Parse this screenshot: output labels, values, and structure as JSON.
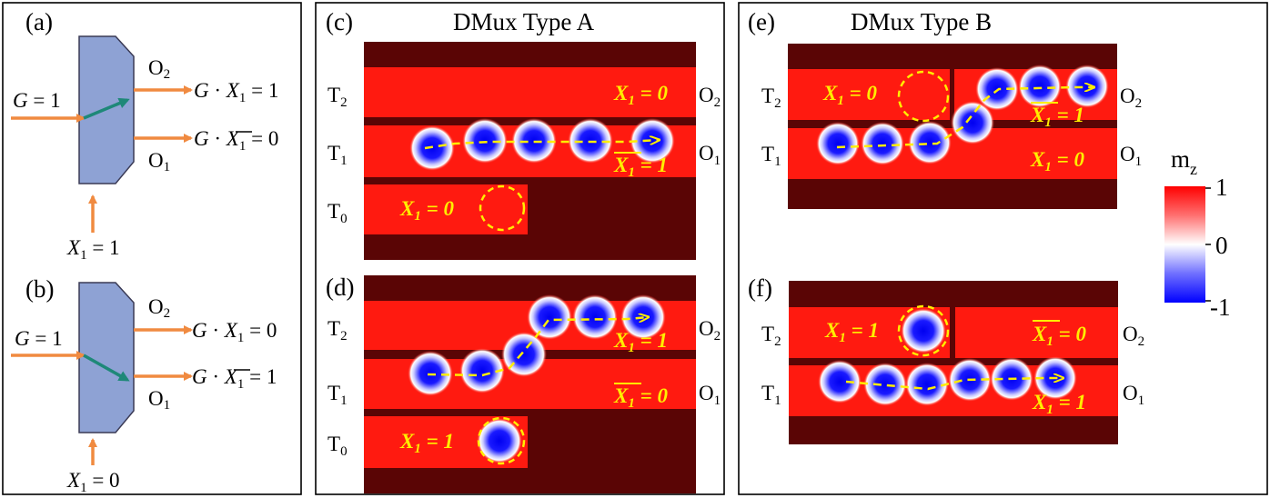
{
  "colors": {
    "dark": "#5a0505",
    "track": "#ff1a10",
    "skyrmion_core": "#0000ff",
    "path": "#ffee00",
    "arrow": "#f08a40",
    "route_arrow": "#1e8878",
    "block": "#8ea2d4"
  },
  "panel_a": {
    "label": "(a)",
    "g_left": "G",
    "g_right": " = 1",
    "o2": "O",
    "o2_sub": "2",
    "o1": "O",
    "o1_sub": "1",
    "out_top_g": "G",
    "out_top_dot": " · ",
    "out_top_x": "X",
    "out_top_sub": "1",
    "out_top_val": " = 1",
    "out_bot_g": "G",
    "out_bot_dot": " · ",
    "out_bot_x": "X",
    "out_bot_sub": "1",
    "out_bot_val": " = 0",
    "x_label": "X",
    "x_sub": "1",
    "x_val": "  = 1"
  },
  "panel_b": {
    "label": "(b)",
    "g_left": "G",
    "g_right": " = 1",
    "o2": "O",
    "o2_sub": "2",
    "o1": "O",
    "o1_sub": "1",
    "out_top_g": "G",
    "out_top_dot": " · ",
    "out_top_x": "X",
    "out_top_sub": "1",
    "out_top_val": " = 0",
    "out_bot_g": "G",
    "out_bot_dot": " · ",
    "out_bot_x": "X",
    "out_bot_sub": "1",
    "out_bot_val": " = 1",
    "x_label": "X",
    "x_sub": "1",
    "x_val": " = 0"
  },
  "panel_c": {
    "label": "(c)",
    "title": "DMux Type A",
    "t2": "T",
    "t2_sub": "2",
    "t1": "T",
    "t1_sub": "1",
    "t0": "T",
    "t0_sub": "0",
    "o2": "O",
    "o2_sub": "2",
    "o1": "O",
    "o1_sub": "1",
    "lab_top": "X",
    "lab_top_sub": "1",
    "lab_top_val": " = 0",
    "lab_mid": "X",
    "lab_mid_sub": "1",
    "lab_mid_val": " = 1",
    "lab_bot": "X",
    "lab_bot_sub": "1",
    "lab_bot_val": " = 0"
  },
  "panel_d": {
    "label": "(d)",
    "t2": "T",
    "t2_sub": "2",
    "t1": "T",
    "t1_sub": "1",
    "t0": "T",
    "t0_sub": "0",
    "o2": "O",
    "o2_sub": "2",
    "o1": "O",
    "o1_sub": "1",
    "lab_top": "X",
    "lab_top_sub": "1",
    "lab_top_val": " = 1",
    "lab_mid": "X",
    "lab_mid_sub": "1",
    "lab_mid_val": " = 0",
    "lab_bot": "X",
    "lab_bot_sub": "1",
    "lab_bot_val": " = 1"
  },
  "panel_e": {
    "label": "(e)",
    "title": "DMux Type B",
    "t2": "T",
    "t2_sub": "2",
    "t1": "T",
    "t1_sub": "1",
    "o2": "O",
    "o2_sub": "2",
    "o1": "O",
    "o1_sub": "1",
    "lab_left": "X",
    "lab_left_sub": "1",
    "lab_left_val": " = 0",
    "lab_top": "X",
    "lab_top_sub": "1",
    "lab_top_val": " = 1",
    "lab_bot": "X",
    "lab_bot_sub": "1",
    "lab_bot_val": " = 0"
  },
  "panel_f": {
    "label": "(f)",
    "t2": "T",
    "t2_sub": "2",
    "t1": "T",
    "t1_sub": "1",
    "o2": "O",
    "o2_sub": "2",
    "o1": "O",
    "o1_sub": "1",
    "lab_left": "X",
    "lab_left_sub": "1",
    "lab_left_val": " = 1",
    "lab_top": "X",
    "lab_top_sub": "1",
    "lab_top_val": " = 0",
    "lab_bot": "X",
    "lab_bot_sub": "1",
    "lab_bot_val": " = 1"
  },
  "colorbar": {
    "label": "m",
    "label_sub": "z",
    "tick_max": "1",
    "tick_mid": "0",
    "tick_min": "-1"
  }
}
